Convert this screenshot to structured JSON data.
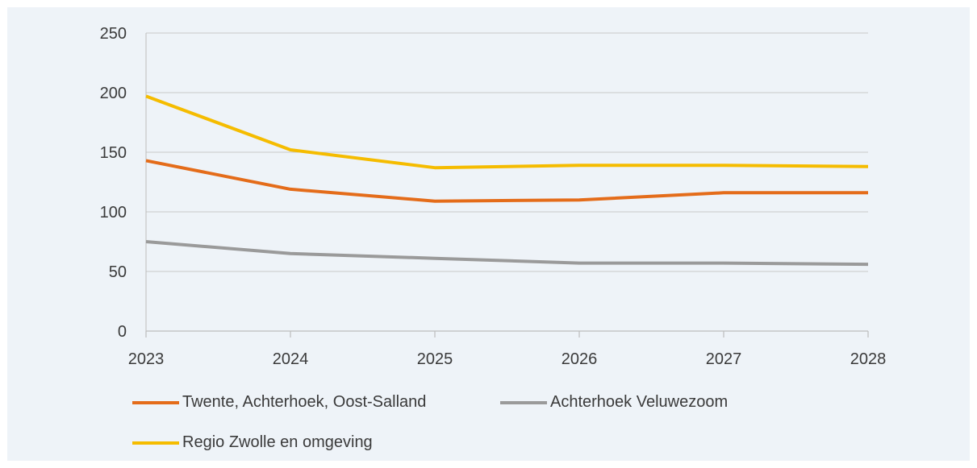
{
  "chart_data": {
    "type": "line",
    "title": "",
    "xlabel": "",
    "ylabel": "",
    "x": [
      "2023",
      "2024",
      "2025",
      "2026",
      "2027",
      "2028"
    ],
    "ylim": [
      0,
      250
    ],
    "yticks": [
      0,
      50,
      100,
      150,
      200,
      250
    ],
    "grid": true,
    "legend_position": "bottom",
    "series": [
      {
        "name": "Twente, Achterhoek, Oost-Salland",
        "color": "#e46c1a",
        "values": [
          143,
          119,
          109,
          110,
          116,
          116
        ]
      },
      {
        "name": "Achterhoek Veluwezoom",
        "color": "#9a9a9a",
        "values": [
          75,
          65,
          61,
          57,
          57,
          56
        ]
      },
      {
        "name": "Regio Zwolle en omgeving",
        "color": "#f5bc00",
        "values": [
          197,
          152,
          137,
          139,
          139,
          138
        ]
      }
    ]
  }
}
